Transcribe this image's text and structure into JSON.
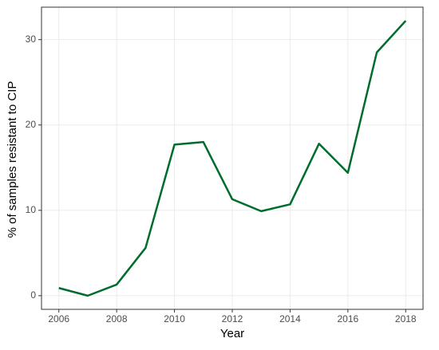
{
  "chart_data": {
    "type": "line",
    "x_label": "Year",
    "y_label": "% of samples resistant to CIP",
    "x": [
      2006,
      2007,
      2008,
      2009,
      2010,
      2011,
      2012,
      2013,
      2014,
      2015,
      2016,
      2017,
      2018
    ],
    "series": [
      {
        "color": "#006d2c",
        "values": [
          0.9,
          0,
          1.3,
          5.6,
          17.7,
          18.0,
          11.3,
          9.9,
          10.7,
          17.8,
          14.4,
          28.5,
          32.2
        ]
      }
    ],
    "xlim": [
      2005.4,
      2018.6
    ],
    "xticks": [
      2006,
      2008,
      2010,
      2012,
      2014,
      2016,
      2018
    ],
    "ylim": [
      -1.6,
      33.8
    ],
    "yticks": [
      0,
      10,
      20,
      30
    ],
    "grid": true
  }
}
